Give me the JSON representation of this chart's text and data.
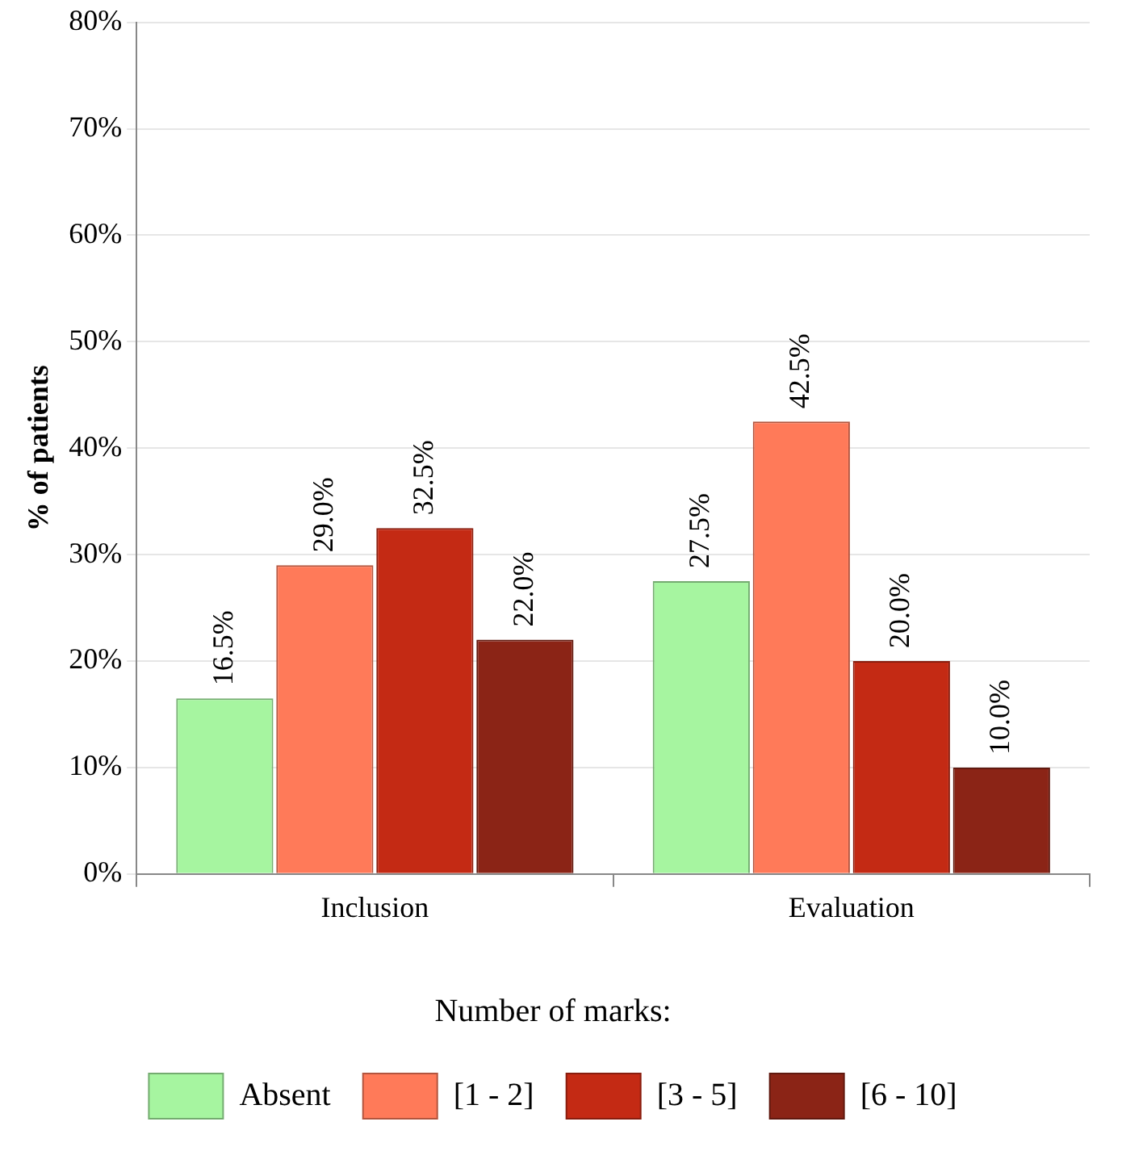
{
  "chart_data": {
    "type": "bar",
    "ylabel": "% of patients",
    "legend_title": "Number of marks:",
    "categories": [
      "Inclusion",
      "Evaluation"
    ],
    "series": [
      {
        "name": "Absent",
        "color": "#a6f5a0",
        "values": [
          16.5,
          27.5
        ],
        "value_labels": [
          "16.5%",
          "27.5%"
        ]
      },
      {
        "name": "[1 - 2]",
        "color": "#ff7a59",
        "values": [
          29.0,
          42.5
        ],
        "value_labels": [
          "29.0%",
          "42.5%"
        ]
      },
      {
        "name": "[3 - 5]",
        "color": "#c42a14",
        "values": [
          32.5,
          20.0
        ],
        "value_labels": [
          "32.5%",
          "20.0%"
        ]
      },
      {
        "name": "[6 - 10]",
        "color": "#8b2416",
        "values": [
          22.0,
          10.0
        ],
        "value_labels": [
          "22.0%",
          "10.0%"
        ]
      }
    ],
    "ylim": [
      0,
      80
    ],
    "yticks": [
      {
        "value": 0,
        "label": "0%"
      },
      {
        "value": 10,
        "label": "10%"
      },
      {
        "value": 20,
        "label": "20%"
      },
      {
        "value": 30,
        "label": "30%"
      },
      {
        "value": 40,
        "label": "40%"
      },
      {
        "value": 50,
        "label": "50%"
      },
      {
        "value": 60,
        "label": "60%"
      },
      {
        "value": 70,
        "label": "70%"
      },
      {
        "value": 80,
        "label": "80%"
      }
    ],
    "grid": "y",
    "legend": "bottom"
  }
}
